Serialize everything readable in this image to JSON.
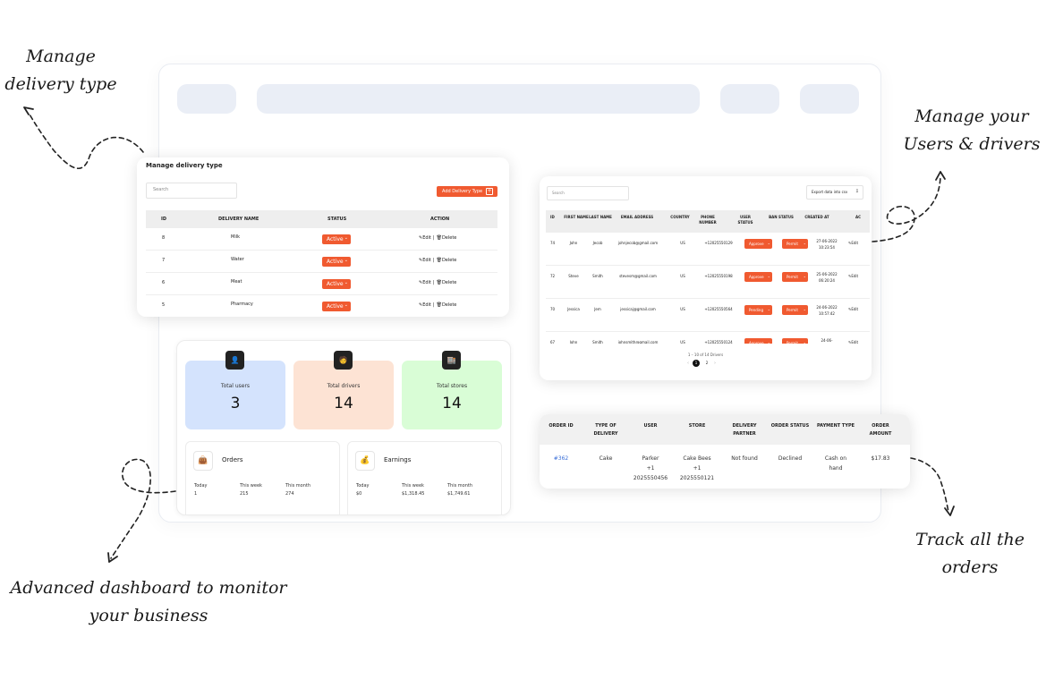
{
  "callouts": {
    "delivery_type": [
      "Manage",
      "delivery type"
    ],
    "users_drivers": [
      "Manage your",
      "Users & drivers"
    ],
    "dashboard": [
      "Advanced dashboard to monitor",
      "your business"
    ],
    "orders": [
      "Track all the",
      "orders"
    ]
  },
  "delivery": {
    "title": "Manage delivery type",
    "search_placeholder": "Search",
    "add_button": "Add Delivery Type",
    "headers": [
      "ID",
      "DELIVERY NAME",
      "STATUS",
      "ACTION"
    ],
    "rows": [
      {
        "id": "8",
        "name": "Milk",
        "status": "Active"
      },
      {
        "id": "7",
        "name": "Water",
        "status": "Active"
      },
      {
        "id": "6",
        "name": "Meat",
        "status": "Active"
      },
      {
        "id": "5",
        "name": "Pharmacy",
        "status": "Active"
      }
    ],
    "edit_label": "Edit",
    "delete_label": "Delete"
  },
  "users": {
    "search_placeholder": "Search",
    "export_button": "Export data into csv",
    "headers": [
      "ID",
      "FIRST NAME",
      "LAST NAME",
      "EMAIL ADDRESS",
      "COUNTRY",
      "PHONE NUMBER",
      "USER STATUS",
      "BAN STATUS",
      "CREATED AT",
      "AC"
    ],
    "rows": [
      {
        "id": "74",
        "first": "John",
        "last": "Jecob",
        "email": "johnjecob@gmail.com",
        "country": "US",
        "phone": "+12025550129",
        "user_status": "Approve",
        "ban_status": "Permit",
        "created": "27-06-2022 10:23:54"
      },
      {
        "id": "72",
        "first": "Steve",
        "last": "Smith",
        "email": "stevesm@gmail.com",
        "country": "US",
        "phone": "+12025550198",
        "user_status": "Approve",
        "ban_status": "Permit",
        "created": "25-06-2022 06:20:24"
      },
      {
        "id": "70",
        "first": "Jessica",
        "last": "Jem",
        "email": "jessicaj@gmail.com",
        "country": "US",
        "phone": "+12025550564",
        "user_status": "Pending",
        "ban_status": "Permit",
        "created": "24-06-2022 10:57:42"
      },
      {
        "id": "67",
        "first": "John",
        "last": "Smith",
        "email": "johnsmith@gmail.com",
        "country": "US",
        "phone": "+12025550124",
        "user_status": "Approve",
        "ban_status": "Permit",
        "created": "24-06-"
      }
    ],
    "edit_label": "Edit",
    "pagination_text": "1 – 10 of 14 Drivers",
    "pages": [
      "1",
      "2"
    ]
  },
  "stats": [
    {
      "label": "Total users",
      "value": "3",
      "color": "#d4e3fd",
      "icon": "user-icon"
    },
    {
      "label": "Total drivers",
      "value": "14",
      "color": "#fde3d4",
      "icon": "driver-icon"
    },
    {
      "label": "Total stores",
      "value": "14",
      "color": "#d9fdd6",
      "icon": "store-icon"
    }
  ],
  "orders_panel": {
    "title": "Orders",
    "cols": [
      {
        "label": "Today",
        "value": "1"
      },
      {
        "label": "This week",
        "value": "215"
      },
      {
        "label": "This month",
        "value": "274"
      }
    ]
  },
  "earnings_panel": {
    "title": "Earnings",
    "cols": [
      {
        "label": "Today",
        "value": "$0"
      },
      {
        "label": "This week",
        "value": "$1,318.45"
      },
      {
        "label": "This month",
        "value": "$1,749.61"
      }
    ]
  },
  "order_table": {
    "headers": [
      "ORDER ID",
      "TYPE OF DELIVERY",
      "USER",
      "STORE",
      "DELIVERY PARTNER",
      "ORDER STATUS",
      "PAYMENT TYPE",
      "ORDER AMOUNT"
    ],
    "row": {
      "order_id": "#362",
      "type": "Cake",
      "user": [
        "Parker",
        "+1",
        "2025550456"
      ],
      "store": [
        "Cake Bees",
        "+1",
        "2025550121"
      ],
      "partner": "Not found",
      "status": "Declined",
      "payment": [
        "Cash on",
        "hand"
      ],
      "amount": "$17.83"
    }
  },
  "colors": {
    "accent": "#f05a30",
    "link": "#3a6fd8",
    "skeleton": "#eaeef6"
  }
}
